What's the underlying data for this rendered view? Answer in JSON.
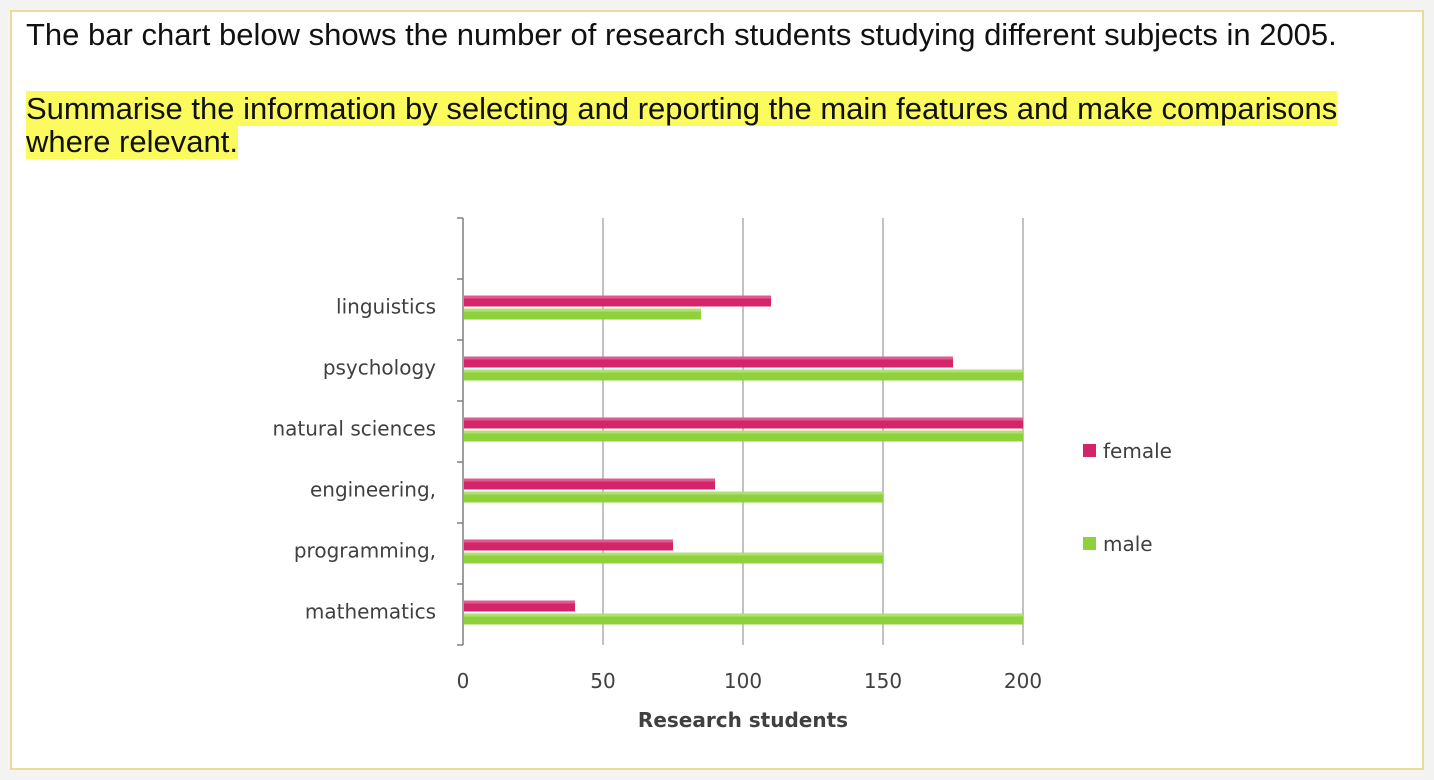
{
  "prompt": "The bar chart below shows the number of research students studying different subjects in 2005.",
  "instruction": "Summarise the information by selecting and reporting the main features and make comparisons where relevant.",
  "colors": {
    "female": "#d4246a",
    "male": "#8fd13a",
    "highlight": "#fbfb5e",
    "border": "#e8dc9a"
  },
  "chart_data": {
    "type": "bar",
    "orientation": "horizontal",
    "categories": [
      "linguistics",
      "psychology",
      "natural sciences",
      "engineering,",
      "programming,",
      "mathematics"
    ],
    "series": [
      {
        "name": "female",
        "values": [
          110,
          175,
          200,
          90,
          75,
          40
        ]
      },
      {
        "name": "male",
        "values": [
          85,
          200,
          200,
          150,
          150,
          200
        ]
      }
    ],
    "xlabel": "Research students",
    "xlim": [
      0,
      200
    ],
    "xticks": [
      0,
      50,
      100,
      150,
      200
    ],
    "grid": true,
    "legend": "right"
  }
}
